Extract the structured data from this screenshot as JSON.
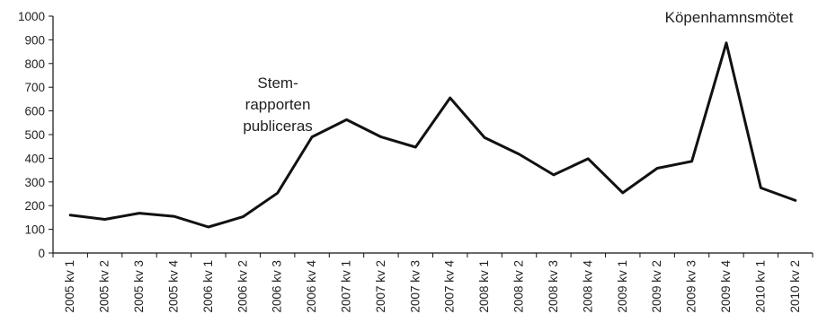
{
  "chart_data": {
    "type": "line",
    "title": "",
    "xlabel": "",
    "ylabel": "",
    "ylim": [
      0,
      1000
    ],
    "yticks": [
      0,
      100,
      200,
      300,
      400,
      500,
      600,
      700,
      800,
      900,
      1000
    ],
    "grid": false,
    "categories": [
      "2005 kv 1",
      "2005 kv 2",
      "2005 kv 3",
      "2005 kv 4",
      "2006 kv 1",
      "2006 kv 2",
      "2006 kv 3",
      "2006 kv 4",
      "2007 kv 1",
      "2007 kv 2",
      "2007 kv 3",
      "2007 kv 4",
      "2008 kv 1",
      "2008 kv 2",
      "2008 kv 3",
      "2008 kv 4",
      "2009 kv 1",
      "2009 kv 2",
      "2009 kv 3",
      "2009 kv 4",
      "2010 kv 1",
      "2010 kv 2"
    ],
    "series": [
      {
        "values": [
          160,
          142,
          168,
          155,
          110,
          153,
          253,
          490,
          563,
          490,
          447,
          655,
          487,
          417,
          330,
          398,
          254,
          358,
          387,
          887,
          275,
          222
        ],
        "color": "#111111"
      }
    ],
    "annotations": [
      {
        "lines": [
          "Stem-",
          "rapporten",
          "publiceras"
        ],
        "category": "2006 kv 4"
      },
      {
        "lines": [
          "Köpenhamnsmötet"
        ],
        "category": "2009 kv 4"
      }
    ]
  }
}
